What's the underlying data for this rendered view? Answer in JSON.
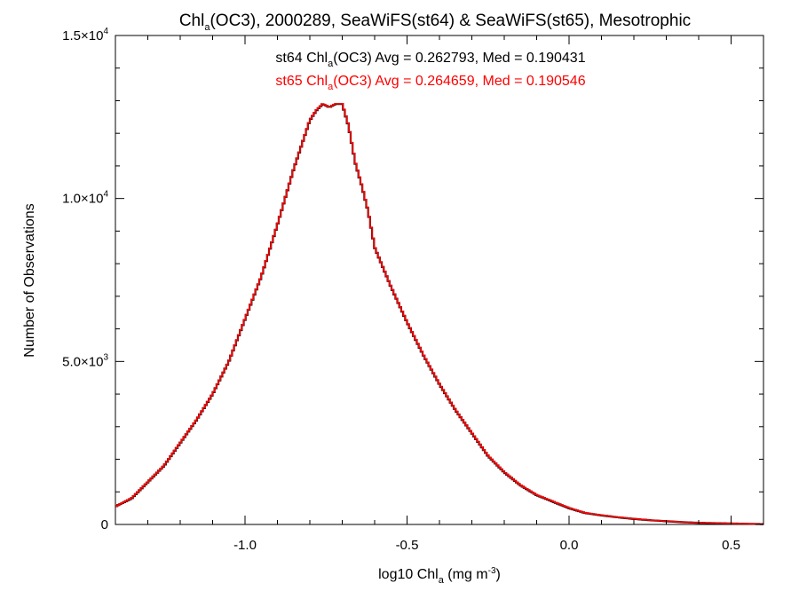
{
  "chart_data": {
    "type": "line",
    "step": true,
    "title": {
      "pre": "Chl",
      "sub": "a",
      "post": "(OC3), 2000289, SeaWiFS(st64) & SeaWiFS(st65), Mesotrophic"
    },
    "xlabel": {
      "pre": "log10 Chl",
      "sub": "a",
      "mid": " (mg m",
      "sup": "-3",
      "post": ")"
    },
    "ylabel": "Number of Observations",
    "xlim": [
      -1.4,
      0.6
    ],
    "ylim": [
      0,
      15000
    ],
    "x_ticks": [
      {
        "value": -1.0,
        "label": "-1.0"
      },
      {
        "value": -0.5,
        "label": "-0.5"
      },
      {
        "value": 0.0,
        "label": "0.0"
      },
      {
        "value": 0.5,
        "label": "0.5"
      }
    ],
    "y_ticks": [
      {
        "value": 0,
        "label": "0",
        "exp": ""
      },
      {
        "value": 5000,
        "label": "5.0×10",
        "exp": "3"
      },
      {
        "value": 10000,
        "label": "1.0×10",
        "exp": "4"
      },
      {
        "value": 15000,
        "label": "1.5×10",
        "exp": "4"
      }
    ],
    "grid": false,
    "annotations": [
      {
        "pre": "st64 Chl",
        "sub": "a",
        "post": "(OC3) Avg = 0.262793, Med = 0.190431",
        "color": "#000000"
      },
      {
        "pre": "st65 Chl",
        "sub": "a",
        "post": "(OC3) Avg = 0.264659, Med = 0.190546",
        "color": "#ff0000"
      }
    ],
    "series": [
      {
        "color": "#000000",
        "x": [
          -1.4,
          -1.35,
          -1.3,
          -1.25,
          -1.2,
          -1.15,
          -1.1,
          -1.05,
          -1.0,
          -0.95,
          -0.9,
          -0.85,
          -0.8,
          -0.78,
          -0.76,
          -0.74,
          -0.72,
          -0.7,
          -0.68,
          -0.66,
          -0.64,
          -0.62,
          -0.6,
          -0.55,
          -0.5,
          -0.45,
          -0.4,
          -0.35,
          -0.3,
          -0.25,
          -0.2,
          -0.15,
          -0.1,
          -0.05,
          0.0,
          0.05,
          0.1,
          0.15,
          0.2,
          0.25,
          0.3,
          0.35,
          0.4,
          0.45,
          0.5,
          0.55,
          0.6
        ],
        "y": [
          550,
          800,
          1300,
          1800,
          2500,
          3200,
          4000,
          5000,
          6300,
          7600,
          9200,
          10900,
          12400,
          12700,
          12900,
          12800,
          12900,
          12900,
          12200,
          11100,
          10400,
          9600,
          8500,
          7300,
          6200,
          5200,
          4300,
          3500,
          2800,
          2100,
          1600,
          1200,
          900,
          700,
          500,
          350,
          280,
          220,
          170,
          130,
          100,
          70,
          50,
          40,
          30,
          20,
          10
        ]
      },
      {
        "color": "#ff0000",
        "x": [
          -1.4,
          -1.35,
          -1.3,
          -1.25,
          -1.2,
          -1.15,
          -1.1,
          -1.05,
          -1.0,
          -0.95,
          -0.9,
          -0.85,
          -0.8,
          -0.78,
          -0.76,
          -0.74,
          -0.72,
          -0.7,
          -0.68,
          -0.66,
          -0.64,
          -0.62,
          -0.6,
          -0.55,
          -0.5,
          -0.45,
          -0.4,
          -0.35,
          -0.3,
          -0.25,
          -0.2,
          -0.15,
          -0.1,
          -0.05,
          0.0,
          0.05,
          0.1,
          0.15,
          0.2,
          0.25,
          0.3,
          0.35,
          0.4,
          0.45,
          0.5,
          0.55,
          0.6
        ],
        "y": [
          550,
          810,
          1310,
          1810,
          2510,
          3210,
          4010,
          5010,
          6310,
          7610,
          9210,
          10910,
          12410,
          12710,
          12910,
          12810,
          12910,
          12910,
          12210,
          11110,
          10410,
          9610,
          8510,
          7310,
          6210,
          5210,
          4310,
          3510,
          2810,
          2110,
          1610,
          1210,
          910,
          710,
          510,
          355,
          285,
          225,
          175,
          132,
          102,
          72,
          52,
          41,
          31,
          21,
          10
        ]
      }
    ]
  }
}
